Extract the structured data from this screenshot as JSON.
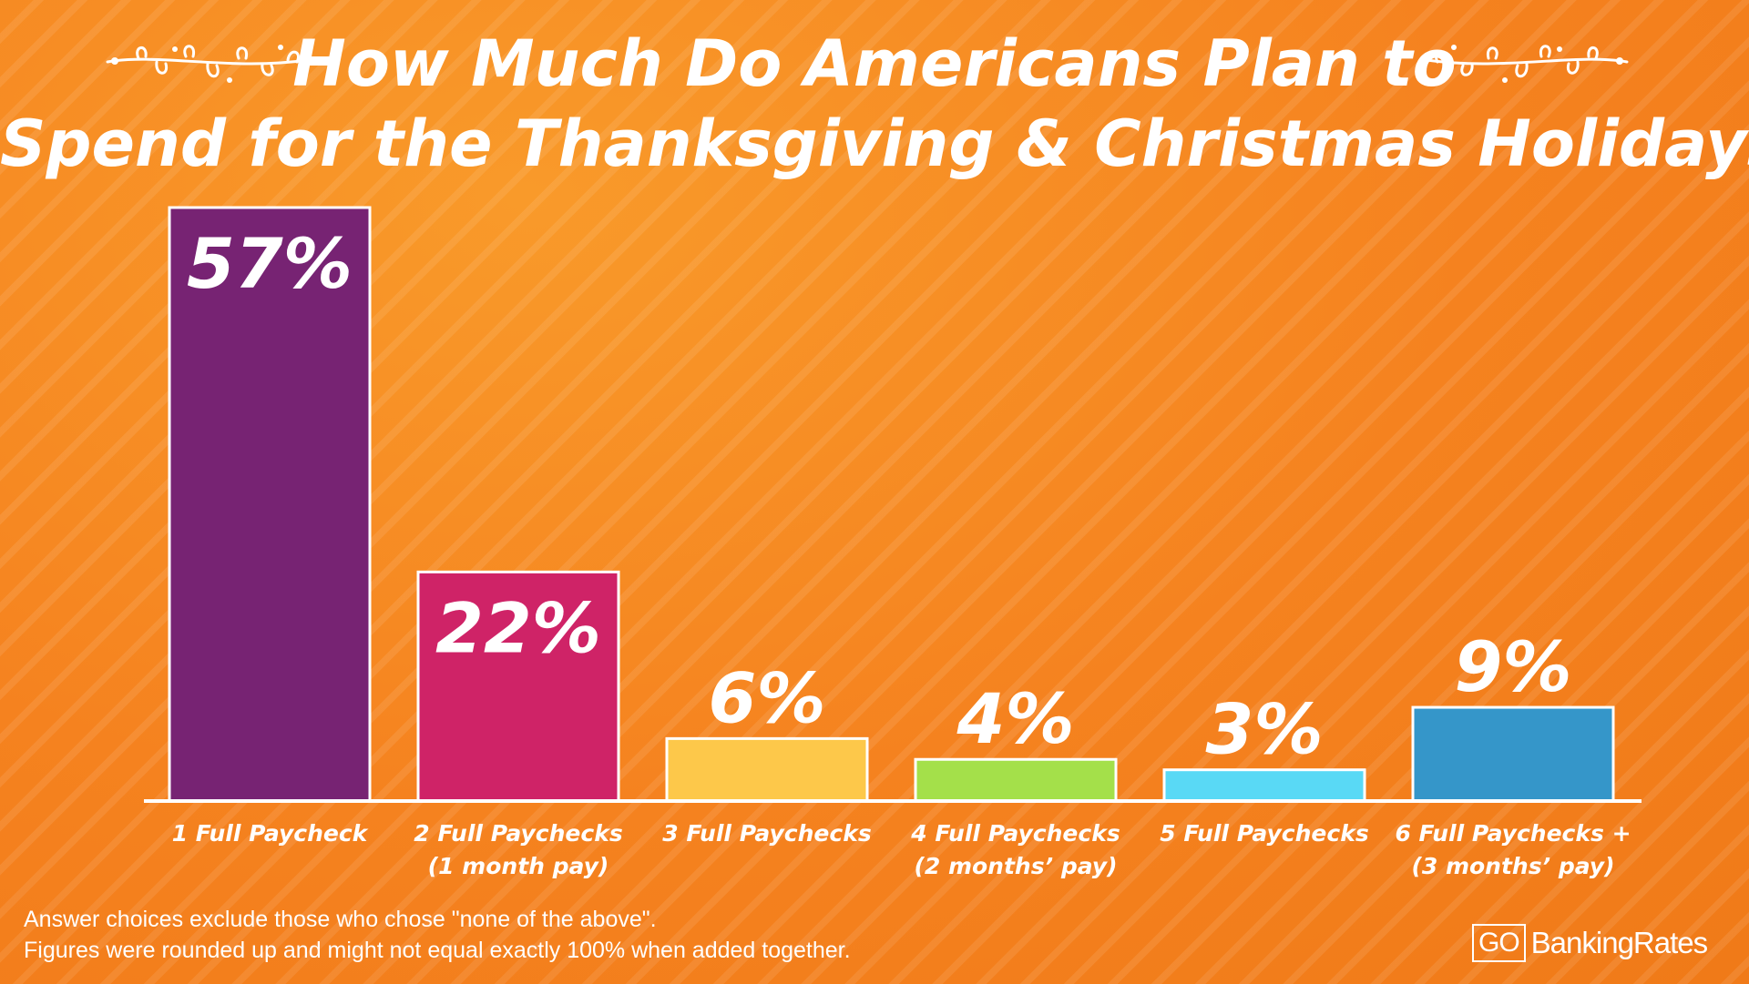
{
  "chart_data": {
    "type": "bar",
    "title": "How Much Do Americans Plan to Spend for the Thanksgiving & Christmas Holidays?",
    "title_lines": [
      "How Much Do Americans Plan to",
      "Spend for the Thanksgiving & Christmas Holidays?"
    ],
    "categories": [
      [
        "1 Full Paycheck"
      ],
      [
        "2 Full Paychecks",
        "(1 month pay)"
      ],
      [
        "3 Full Paychecks"
      ],
      [
        "4 Full Paychecks",
        "(2 months’ pay)"
      ],
      [
        "5 Full Paychecks"
      ],
      [
        "6 Full Paychecks +",
        "(3 months’ pay)"
      ]
    ],
    "values": [
      57,
      22,
      6,
      4,
      3,
      9
    ],
    "value_labels": [
      "57%",
      "22%",
      "6%",
      "4%",
      "3%",
      "9%"
    ],
    "bar_colors": [
      "#772373",
      "#cf2367",
      "#fdc84a",
      "#a4e04a",
      "#59d9f5",
      "#3596c9"
    ],
    "ylim": [
      0,
      57
    ],
    "grid": false,
    "legend": "none"
  },
  "footnotes": [
    "Answer choices exclude those who chose  \"none of the above\".",
    "Figures were rounded up and might not equal exactly 100% when added together."
  ],
  "logo": {
    "go": "GO",
    "name": "BankingRates"
  },
  "colors": {
    "background": "#f5821f",
    "text": "#ffffff"
  }
}
